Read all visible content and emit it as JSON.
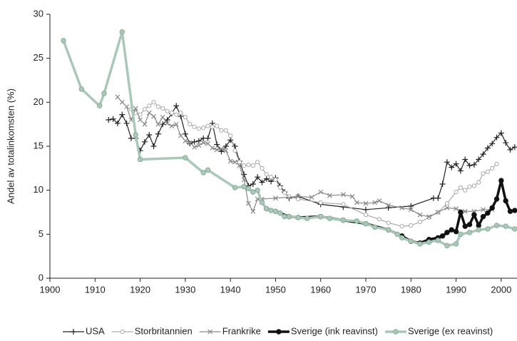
{
  "chart_data": {
    "type": "line",
    "y_label": "Andel av totalinkomsten (%)",
    "xlim": [
      1900,
      2003.5
    ],
    "ylim": [
      0,
      30
    ],
    "xticks": [
      1900,
      1910,
      1920,
      1930,
      1940,
      1950,
      1960,
      1970,
      1980,
      1990,
      2000
    ],
    "yticks": [
      0,
      5,
      10,
      15,
      20,
      25,
      30
    ],
    "legend": "bottom",
    "series": [
      {
        "name": "USA",
        "color": "#222222",
        "marker": "plus",
        "x": [
          1913,
          1914,
          1915,
          1916,
          1917,
          1918,
          1919,
          1920,
          1921,
          1922,
          1923,
          1924,
          1925,
          1926,
          1927,
          1928,
          1929,
          1930,
          1931,
          1932,
          1933,
          1934,
          1935,
          1936,
          1937,
          1938,
          1939,
          1940,
          1941,
          1942,
          1943,
          1944,
          1945,
          1946,
          1947,
          1948,
          1949,
          1950,
          1951,
          1952,
          1953,
          1955,
          1960,
          1965,
          1970,
          1975,
          1980,
          1985,
          1986,
          1987,
          1988,
          1989,
          1990,
          1991,
          1992,
          1993,
          1994,
          1995,
          1996,
          1997,
          1998,
          1999,
          2000,
          2001,
          2002,
          2003
        ],
        "values": [
          18,
          18.1,
          17.6,
          18.6,
          17.6,
          15.9,
          15.9,
          14.5,
          15.5,
          16.3,
          15,
          16.4,
          17.5,
          18,
          18.7,
          19.6,
          18.4,
          16.4,
          15.3,
          15.5,
          15.6,
          15.9,
          15.9,
          17.6,
          15.2,
          14.4,
          15,
          15.7,
          15,
          13.3,
          11.8,
          10.5,
          10.7,
          11.5,
          10.9,
          11.3,
          11,
          11.4,
          10.5,
          9.8,
          9.1,
          9.3,
          8.4,
          8.1,
          7.8,
          8,
          8.2,
          9.1,
          9.1,
          10.7,
          13.2,
          12.6,
          13,
          12.2,
          13.5,
          12.8,
          12.9,
          13.5,
          14.1,
          14.8,
          15.3,
          16,
          16.5,
          15.4,
          14.6,
          14.9
        ]
      },
      {
        "name": "Storbritannien",
        "color": "#aaaaaa",
        "marker": "circle-open",
        "x": [
          1918,
          1919,
          1920,
          1921,
          1922,
          1923,
          1924,
          1925,
          1926,
          1927,
          1928,
          1929,
          1930,
          1931,
          1932,
          1933,
          1934,
          1935,
          1936,
          1937,
          1938,
          1939,
          1940,
          1941,
          1942,
          1943,
          1944,
          1945,
          1946,
          1947,
          1948,
          1949,
          1950,
          1951,
          1952,
          1953,
          1955,
          1960,
          1965,
          1970,
          1973,
          1975,
          1978,
          1980,
          1982,
          1984,
          1986,
          1988,
          1990,
          1991,
          1992,
          1993,
          1994,
          1995,
          1996,
          1997,
          1998,
          1999
        ],
        "values": [
          19.2,
          18.8,
          18.6,
          19.2,
          19.6,
          20,
          19.5,
          19.3,
          19,
          18.8,
          18.6,
          18.8,
          18.3,
          17.5,
          17.2,
          17,
          17.1,
          17.3,
          17.2,
          17.3,
          16.8,
          16.8,
          16.2,
          14.5,
          13.2,
          12.8,
          12.9,
          12.8,
          13.2,
          12.5,
          11.8,
          11.5,
          11.2,
          10.3,
          9.7,
          9.3,
          9,
          8.6,
          8.4,
          7.2,
          6.7,
          6.3,
          5.9,
          6,
          6.4,
          6.9,
          7.5,
          8.5,
          9.8,
          10.3,
          10,
          10.4,
          10.5,
          10.9,
          11.9,
          12.1,
          12.5,
          13
        ]
      },
      {
        "name": "Frankrike",
        "color": "#888888",
        "marker": "cross",
        "x": [
          1915,
          1916,
          1917,
          1918,
          1919,
          1920,
          1921,
          1922,
          1923,
          1924,
          1925,
          1926,
          1927,
          1928,
          1929,
          1930,
          1931,
          1932,
          1933,
          1934,
          1935,
          1936,
          1937,
          1938,
          1939,
          1940,
          1941,
          1942,
          1943,
          1944,
          1945,
          1946,
          1947,
          1950,
          1955,
          1958,
          1960,
          1962,
          1965,
          1967,
          1968,
          1970,
          1972,
          1973,
          1975,
          1978,
          1980,
          1982,
          1984,
          1986,
          1988,
          1990,
          1992,
          1994,
          1996,
          1998
        ],
        "values": [
          20.6,
          20,
          19.5,
          18,
          19.3,
          18,
          17.5,
          18.8,
          18.4,
          17.5,
          18.3,
          17.6,
          17.3,
          17.5,
          16.2,
          15.6,
          15.4,
          14.9,
          15.1,
          15.4,
          15.3,
          14.8,
          14.6,
          14.7,
          14.5,
          13.3,
          13.2,
          12.8,
          11.2,
          8.5,
          7.6,
          9,
          9,
          9.1,
          9.3,
          9.2,
          9.8,
          9.4,
          9.5,
          9.3,
          8.6,
          8.5,
          8.6,
          8.8,
          8.3,
          8,
          7.8,
          7.2,
          7,
          7.5,
          8,
          7.9,
          7.6,
          7.6,
          7.8,
          7.8
        ]
      },
      {
        "name": "Sverige (ink reavinst)",
        "color": "#111111",
        "marker": "circle-filled",
        "x": [
          1948,
          1950,
          1953,
          1955,
          1960,
          1965,
          1970,
          1975,
          1978,
          1980,
          1982,
          1984,
          1986,
          1987,
          1988,
          1989,
          1990,
          1991,
          1992,
          1993,
          1994,
          1995,
          1996,
          1997,
          1998,
          1999,
          2000,
          2001,
          2002,
          2003
        ],
        "values": [
          7.9,
          7.6,
          7,
          6.9,
          7,
          6.6,
          6.2,
          5.5,
          4.8,
          4.2,
          4,
          4.4,
          4.6,
          4.8,
          5.2,
          5.5,
          5.3,
          7.5,
          5.9,
          6.1,
          7.2,
          6,
          7,
          7.4,
          8,
          9,
          11.1,
          8.8,
          7.6,
          7.7
        ]
      },
      {
        "name": "Sverige (ex reavinst)",
        "color": "#a9c9b8",
        "marker": "circle-filled",
        "x": [
          1903,
          1907,
          1911,
          1912,
          1916,
          1919,
          1920,
          1930,
          1934,
          1935,
          1941,
          1943,
          1944,
          1945,
          1946,
          1947,
          1948,
          1949,
          1950,
          1951,
          1952,
          1953,
          1955,
          1957,
          1960,
          1962,
          1965,
          1968,
          1970,
          1972,
          1975,
          1977,
          1978,
          1980,
          1982,
          1984,
          1986,
          1988,
          1990,
          1991,
          1993,
          1995,
          1997,
          1999,
          2001,
          2003
        ],
        "values": [
          27,
          21.5,
          19.6,
          21,
          28,
          16.3,
          13.5,
          13.7,
          12,
          12.3,
          10.3,
          10.4,
          10.2,
          9.8,
          10,
          8.6,
          7.9,
          7.7,
          7.6,
          7.4,
          7,
          7,
          6.9,
          6.8,
          7,
          6.8,
          6.6,
          6.5,
          6.2,
          5.8,
          5.5,
          5,
          4.6,
          4.2,
          3.9,
          4.1,
          4.3,
          3.7,
          3.9,
          5,
          5.2,
          5.5,
          5.6,
          6,
          5.9,
          5.6
        ]
      }
    ]
  }
}
